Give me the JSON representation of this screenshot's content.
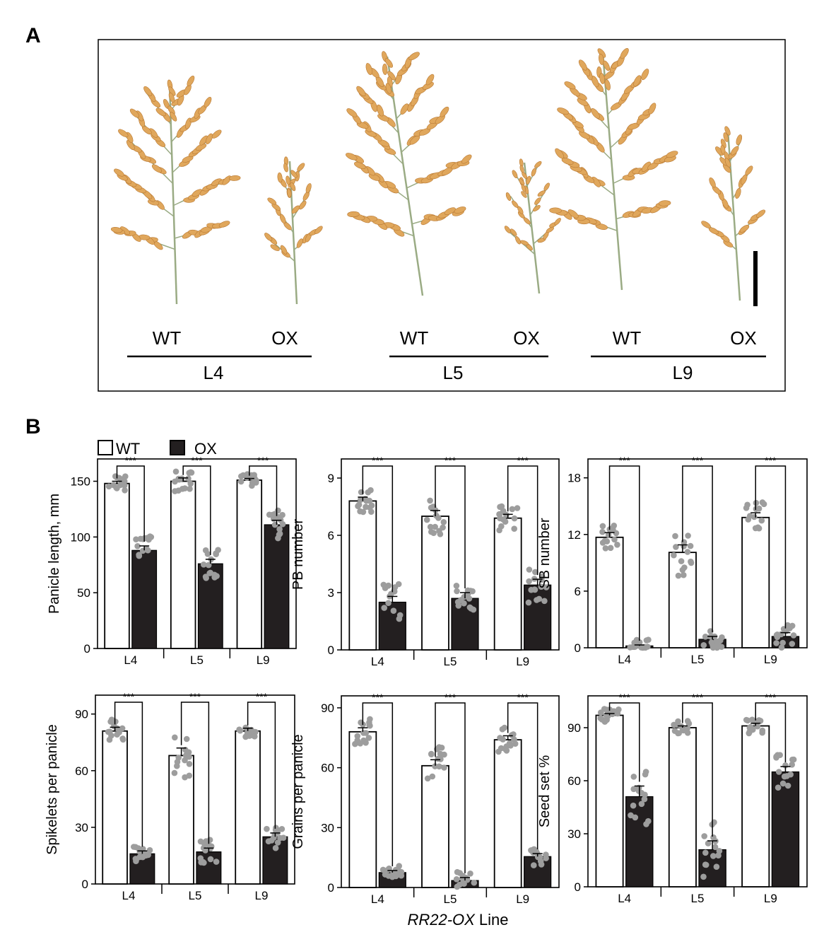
{
  "panel_a": {
    "label": "A",
    "groups": [
      {
        "name": "L4",
        "wt_label": "WT",
        "ox_label": "OX"
      },
      {
        "name": "L5",
        "wt_label": "WT",
        "ox_label": "OX"
      },
      {
        "name": "L9",
        "wt_label": "WT",
        "ox_label": "OX"
      }
    ]
  },
  "panel_b": {
    "label": "B",
    "legend": {
      "wt": "WT",
      "ox": "OX"
    },
    "x_title": "RR22-OX Line",
    "significance": "***"
  },
  "colors": {
    "wt_bar": "#ffffff",
    "ox_bar": "#231f20",
    "dots": "#9d9d9d",
    "spikelet": "#e0a75c",
    "stem": "#9aab84"
  },
  "chart_data": [
    {
      "type": "bar",
      "ylabel": "Panicle length, mm",
      "categories": [
        "L4",
        "L5",
        "L9"
      ],
      "ylim": [
        0,
        170
      ],
      "yticks": [
        0,
        50,
        100,
        150
      ],
      "series": [
        {
          "name": "WT",
          "values": [
            148,
            150,
            151
          ],
          "sem": [
            2,
            3,
            1.5
          ]
        },
        {
          "name": "OX",
          "values": [
            88,
            76,
            111
          ],
          "sem": [
            4,
            4,
            4
          ]
        }
      ]
    },
    {
      "type": "bar",
      "ylabel": "PB number",
      "categories": [
        "L4",
        "L5",
        "L9"
      ],
      "ylim": [
        0,
        10
      ],
      "yticks": [
        0,
        3,
        6,
        9
      ],
      "series": [
        {
          "name": "WT",
          "values": [
            7.8,
            7.0,
            6.9
          ],
          "sem": [
            0.2,
            0.3,
            0.2
          ]
        },
        {
          "name": "OX",
          "values": [
            2.5,
            2.7,
            3.4
          ],
          "sem": [
            0.3,
            0.3,
            0.3
          ]
        }
      ]
    },
    {
      "type": "bar",
      "ylabel": "SB number",
      "categories": [
        "L4",
        "L5",
        "L9"
      ],
      "ylim": [
        0,
        20
      ],
      "yticks": [
        0,
        6,
        12,
        18
      ],
      "series": [
        {
          "name": "WT",
          "values": [
            11.7,
            10.1,
            13.8
          ],
          "sem": [
            0.5,
            0.8,
            0.5
          ]
        },
        {
          "name": "OX",
          "values": [
            0.2,
            0.9,
            1.2
          ],
          "sem": [
            0.1,
            0.3,
            0.4
          ]
        }
      ]
    },
    {
      "type": "bar",
      "ylabel": "Spikelets per panicle",
      "categories": [
        "L4",
        "L5",
        "L9"
      ],
      "ylim": [
        0,
        100
      ],
      "yticks": [
        0,
        30,
        60,
        90
      ],
      "series": [
        {
          "name": "WT",
          "values": [
            81,
            68,
            81
          ],
          "sem": [
            2,
            4,
            1.5
          ]
        },
        {
          "name": "OX",
          "values": [
            16,
            17,
            25
          ],
          "sem": [
            1.5,
            2,
            2
          ]
        }
      ]
    },
    {
      "type": "bar",
      "ylabel": "Grains per panicle",
      "categories": [
        "L4",
        "L5",
        "L9"
      ],
      "ylim": [
        0,
        96
      ],
      "yticks": [
        0,
        30,
        60,
        90
      ],
      "series": [
        {
          "name": "WT",
          "values": [
            78,
            61,
            74
          ],
          "sem": [
            2,
            3,
            2
          ]
        },
        {
          "name": "OX",
          "values": [
            7.5,
            3.5,
            15.5
          ],
          "sem": [
            1,
            1.5,
            1.5
          ]
        }
      ]
    },
    {
      "type": "bar",
      "ylabel": "Seed set %",
      "categories": [
        "L4",
        "L5",
        "L9"
      ],
      "ylim": [
        0,
        108
      ],
      "yticks": [
        0,
        30,
        60,
        90
      ],
      "series": [
        {
          "name": "WT",
          "values": [
            97,
            90,
            91
          ],
          "sem": [
            1,
            1,
            1.5
          ]
        },
        {
          "name": "OX",
          "values": [
            51,
            21,
            65
          ],
          "sem": [
            6,
            5,
            3
          ]
        }
      ]
    }
  ]
}
